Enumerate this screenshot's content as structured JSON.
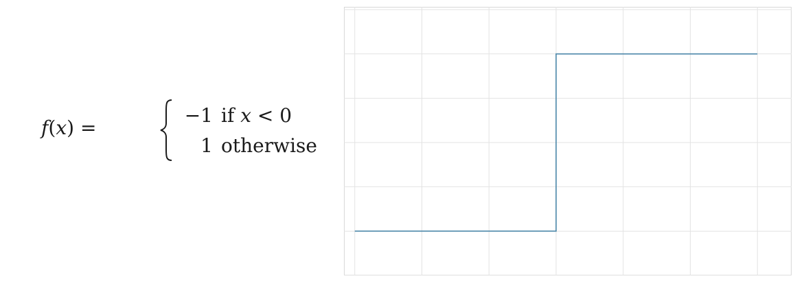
{
  "formula": {
    "lhs_func": "f",
    "lhs_arg": "x",
    "equals": "=",
    "cases": [
      {
        "value": "−1",
        "condition_prefix": "if ",
        "condition_var": "x",
        "condition_rest": " < 0"
      },
      {
        "value": "1",
        "condition_prefix": "otherwise",
        "condition_var": "",
        "condition_rest": ""
      }
    ]
  },
  "chart_data": {
    "type": "line",
    "series": [
      {
        "x": [
          -3,
          0,
          0,
          3
        ],
        "y": [
          -1,
          -1,
          1,
          1
        ]
      }
    ],
    "xlim": [
      -3.1,
      3.1
    ],
    "ylim": [
      -1.5,
      1.5
    ],
    "x_grid": [
      -3,
      -2,
      -1,
      0,
      1,
      2,
      3
    ],
    "y_grid": [
      -1.5,
      -1,
      -0.5,
      0,
      0.5,
      1,
      1.5
    ],
    "grid": true,
    "line_color": "#4a86a8",
    "grid_color": "#e3e3e3"
  }
}
